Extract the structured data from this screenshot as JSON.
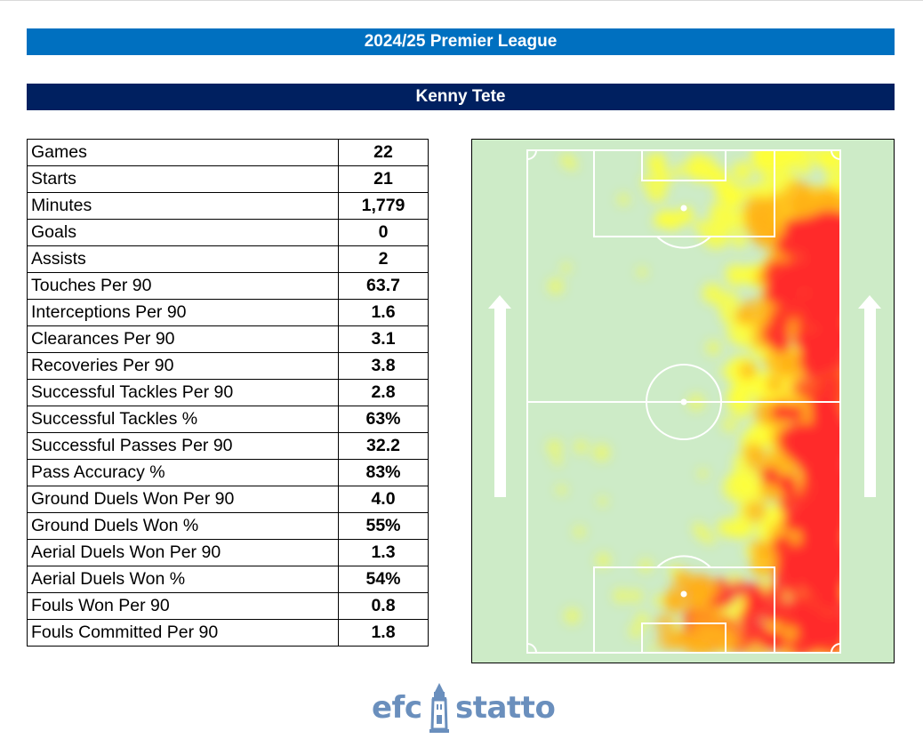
{
  "header": {
    "season_title": "2024/25 Premier League",
    "player_name": "Kenny Tete"
  },
  "stats": [
    {
      "label": "Games",
      "value": "22"
    },
    {
      "label": "Starts",
      "value": "21"
    },
    {
      "label": "Minutes",
      "value": "1,779"
    },
    {
      "label": "Goals",
      "value": "0"
    },
    {
      "label": "Assists",
      "value": "2"
    },
    {
      "label": "Touches Per 90",
      "value": "63.7"
    },
    {
      "label": "Interceptions Per 90",
      "value": "1.6"
    },
    {
      "label": "Clearances Per 90",
      "value": "3.1"
    },
    {
      "label": "Recoveries Per 90",
      "value": "3.8"
    },
    {
      "label": "Successful Tackles Per 90",
      "value": "2.8"
    },
    {
      "label": "Successful Tackles %",
      "value": "63%"
    },
    {
      "label": "Successful Passes Per 90",
      "value": "32.2"
    },
    {
      "label": "Pass Accuracy %",
      "value": "83%"
    },
    {
      "label": "Ground Duels Won Per 90",
      "value": "4.0"
    },
    {
      "label": "Ground Duels Won %",
      "value": "55%"
    },
    {
      "label": "Aerial Duels Won Per 90",
      "value": "1.3"
    },
    {
      "label": "Aerial Duels Won %",
      "value": "54%"
    },
    {
      "label": "Fouls Won Per 90",
      "value": "0.8"
    },
    {
      "label": "Fouls Committed Per 90",
      "value": "1.8"
    }
  ],
  "heatmap": {
    "pitch_color": "#cdebc7",
    "line_color": "#ffffff",
    "heat_colors": [
      "#ffff33",
      "#ffb21a",
      "#ff2b2b"
    ],
    "direction_icon": "arrow-up-icon",
    "dominant_zone": "right flank"
  },
  "logo": {
    "left_text": "efc",
    "right_text": "statto",
    "color": "#6a8fbd"
  }
}
